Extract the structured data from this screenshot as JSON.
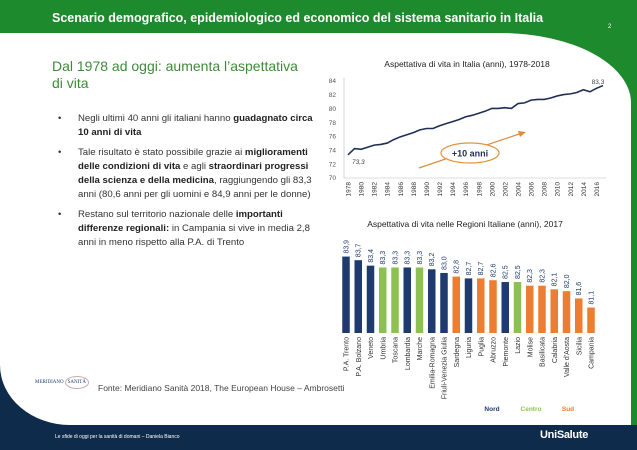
{
  "header": {
    "title": "Scenario demografico, epidemiologico ed economico del sistema sanitario in Italia",
    "page_number": "2"
  },
  "left": {
    "subtitle": "Dal 1978 ad oggi: aumenta l’aspettativa di vita",
    "bullets": [
      {
        "parts": [
          {
            "t": "Negli ultimi 40 anni gli italiani hanno "
          },
          {
            "t": "guadagnato circa 10 anni di vita",
            "b": true
          }
        ]
      },
      {
        "parts": [
          {
            "t": "Tale risultato è stato possibile grazie ai "
          },
          {
            "t": "miglioramenti delle condizioni di vita",
            "b": true
          },
          {
            "t": " e agli "
          },
          {
            "t": "straordinari progressi della scienza e della medicina",
            "b": true
          },
          {
            "t": ", raggiungendo gli 83,3 anni (80,6 anni per gli uomini e 84,9 anni per le donne)"
          }
        ]
      },
      {
        "parts": [
          {
            "t": "Restano sul territorio nazionale delle "
          },
          {
            "t": "importanti differenze regionali:",
            "b": true
          },
          {
            "t": " in Campania si vive in media 2,8 anni in meno rispetto alla P.A. di Trento"
          }
        ]
      }
    ]
  },
  "source": "Fonte: Meridiano Sanità 2018, The European House – Ambrosetti",
  "logos": {
    "meridiano": "MERIDIANO SANITÀ",
    "unisalute": "UniSalute"
  },
  "footer": {
    "text": "Le sfide di oggi per la sanità di domani – Daniela Bianco"
  },
  "colors": {
    "header_green": "#1e8a2e",
    "navy": "#0f2b4c",
    "nord": "#1f3a6e",
    "centro": "#8cc152",
    "sud": "#ed7d31",
    "line": "#1f2f55"
  },
  "chart_data": [
    {
      "type": "line",
      "title": "Aspettativa di vita in Italia (anni), 1978-2018",
      "ylim": [
        70,
        84
      ],
      "yticks": [
        "70",
        "72",
        "74",
        "76",
        "78",
        "80",
        "82",
        "84"
      ],
      "xticks": [
        "1978",
        "1980",
        "1982",
        "1984",
        "1986",
        "1988",
        "1990",
        "1992",
        "1994",
        "1996",
        "1998",
        "2000",
        "2002",
        "2004",
        "2006",
        "2008",
        "2010",
        "2012",
        "2014",
        "2016"
      ],
      "x": [
        1978,
        1979,
        1980,
        1981,
        1982,
        1983,
        1984,
        1985,
        1986,
        1987,
        1988,
        1989,
        1990,
        1991,
        1992,
        1993,
        1994,
        1995,
        1996,
        1997,
        1998,
        1999,
        2000,
        2001,
        2002,
        2003,
        2004,
        2005,
        2006,
        2007,
        2008,
        2009,
        2010,
        2011,
        2012,
        2013,
        2014,
        2015,
        2016,
        2017
      ],
      "y": [
        73.3,
        74.2,
        74.1,
        74.4,
        74.7,
        74.8,
        75.0,
        75.5,
        75.9,
        76.2,
        76.5,
        76.9,
        77.1,
        77.1,
        77.5,
        77.8,
        78.1,
        78.4,
        78.8,
        79.0,
        79.3,
        79.6,
        80.0,
        80.0,
        80.1,
        80.0,
        80.7,
        80.8,
        81.2,
        81.3,
        81.3,
        81.5,
        81.8,
        82.0,
        82.1,
        82.3,
        82.7,
        82.4,
        82.9,
        83.3
      ],
      "data_labels": {
        "start": "73,3",
        "end": "83,3"
      },
      "annotation": "+10 anni"
    },
    {
      "type": "bar",
      "title": "Aspettativa di vita nelle Regioni Italiane (anni), 2017",
      "categories": [
        "P.A. Trento",
        "P.A. Bolzano",
        "Veneto",
        "Umbria",
        "Toscana",
        "Lombardia",
        "Marche",
        "Emilia-Romagna",
        "Friuli-Venezia Giulia",
        "Sardegna",
        "Liguria",
        "Puglia",
        "Abruzzo",
        "Piemonte",
        "Lazio",
        "Molise",
        "Basilicata",
        "Calabria",
        "Valle d'Aosta",
        "Sicilia",
        "Campania"
      ],
      "values": [
        83.9,
        83.7,
        83.4,
        83.3,
        83.3,
        83.3,
        83.3,
        83.2,
        83.0,
        82.8,
        82.7,
        82.7,
        82.6,
        82.5,
        82.5,
        82.3,
        82.3,
        82.1,
        82.0,
        81.6,
        81.1
      ],
      "labels": [
        "83,9",
        "83,7",
        "83,4",
        "83,3",
        "83,3",
        "83,3",
        "83,3",
        "83,2",
        "83,0",
        "82,8",
        "82,7",
        "82,7",
        "82,6",
        "82,5",
        "82,5",
        "82,3",
        "82,3",
        "82,1",
        "82,0",
        "81,6",
        "81,1"
      ],
      "groups": [
        "Nord",
        "Nord",
        "Nord",
        "Centro",
        "Centro",
        "Nord",
        "Centro",
        "Nord",
        "Nord",
        "Sud",
        "Nord",
        "Sud",
        "Sud",
        "Nord",
        "Centro",
        "Sud",
        "Sud",
        "Sud",
        "Sud",
        "Sud",
        "Sud"
      ],
      "legend": [
        {
          "name": "Nord"
        },
        {
          "name": "Centro"
        },
        {
          "name": "Sud"
        }
      ],
      "legend_position": "bottom-right"
    }
  ]
}
